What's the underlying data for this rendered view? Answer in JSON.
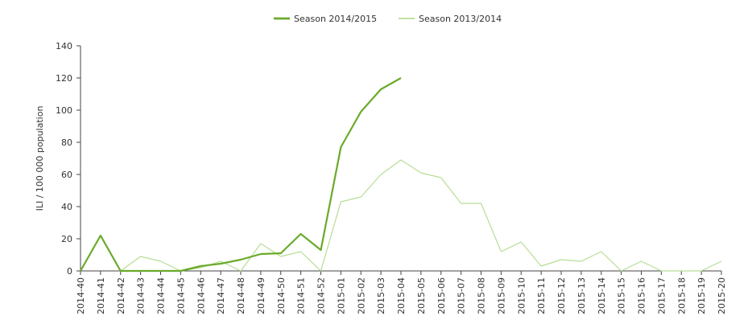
{
  "chart_data": {
    "type": "line",
    "ylabel": "ILI / 100 000 population",
    "categories": [
      "2014-40",
      "2014-41",
      "2014-42",
      "2014-43",
      "2014-44",
      "2014-45",
      "2014-46",
      "2014-47",
      "2014-48",
      "2014-49",
      "2014-50",
      "2014-51",
      "2014-52",
      "2015-01",
      "2015-02",
      "2015-03",
      "2015-04",
      "2015-05",
      "2015-06",
      "2015-07",
      "2015-08",
      "2015-09",
      "2015-10",
      "2015-11",
      "2015-12",
      "2015-13",
      "2015-14",
      "2015-15",
      "2015-16",
      "2015-17",
      "2015-18",
      "2015-19",
      "2015-20"
    ],
    "series": [
      {
        "name": "Season 2014/2015",
        "color": "#6aaa2a",
        "width": 2.2,
        "values": [
          0,
          22,
          0,
          0,
          0,
          0,
          3,
          4.5,
          7,
          10.5,
          11,
          23,
          13,
          77,
          99,
          113,
          120,
          null,
          null,
          null,
          null,
          null,
          null,
          null,
          null,
          null,
          null,
          null,
          null,
          null,
          null,
          null,
          null
        ]
      },
      {
        "name": "Season 2013/2014",
        "color": "#b7dd96",
        "width": 1.2,
        "values": [
          null,
          null,
          0,
          9,
          6,
          0,
          2,
          6,
          0,
          17,
          9,
          12,
          0,
          43,
          46,
          60,
          69,
          61,
          58,
          42,
          42,
          12,
          18,
          3,
          7,
          6,
          12,
          0,
          6,
          0,
          0,
          0,
          6
        ]
      }
    ],
    "ylim": [
      0,
      140
    ],
    "yticks": [
      0,
      20,
      40,
      60,
      80,
      100,
      120,
      140
    ],
    "legend": "top"
  }
}
